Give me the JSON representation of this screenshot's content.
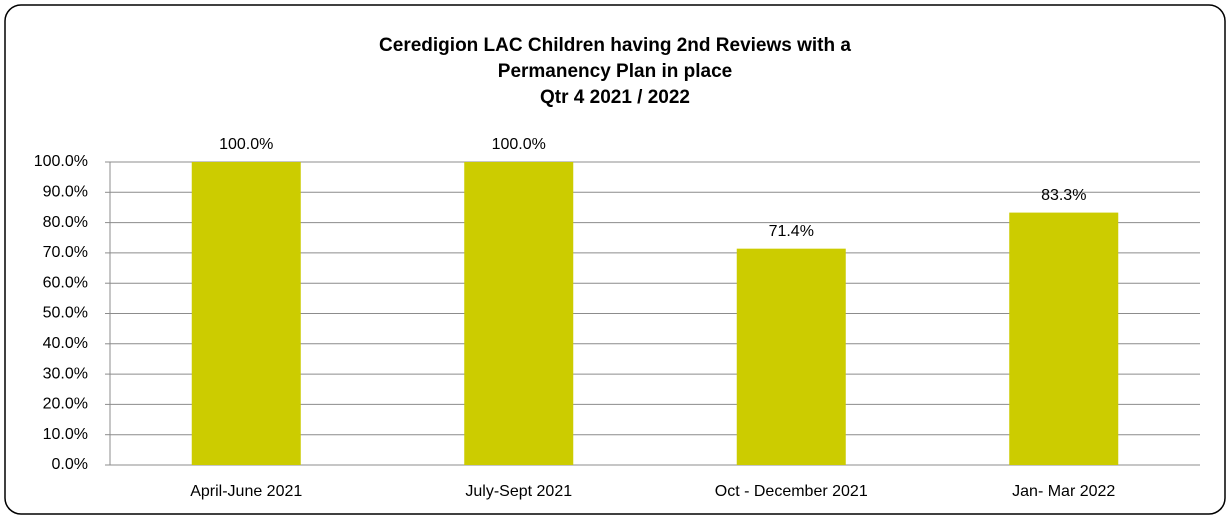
{
  "chart_data": {
    "type": "bar",
    "title": [
      "Ceredigion LAC Children having 2nd Reviews with a",
      "Permanency Plan in place",
      "Qtr 4 2021 / 2022"
    ],
    "categories": [
      "April-June 2021",
      "July-Sept 2021",
      "Oct - December 2021",
      "Jan- Mar 2022"
    ],
    "values": [
      100,
      100,
      71.4,
      83.3
    ],
    "value_labels": [
      "100.0%",
      "100.0%",
      "71.4%",
      "83.3%"
    ],
    "color": "#cccc00",
    "ylim": [
      0,
      100
    ],
    "yticks": [
      {
        "value": 0,
        "label": "0.0%"
      },
      {
        "value": 10,
        "label": "10.0%"
      },
      {
        "value": 20,
        "label": "20.0%"
      },
      {
        "value": 30,
        "label": "30.0%"
      },
      {
        "value": 40,
        "label": "40.0%"
      },
      {
        "value": 50,
        "label": "50.0%"
      },
      {
        "value": 60,
        "label": "60.0%"
      },
      {
        "value": 70,
        "label": "70.0%"
      },
      {
        "value": 80,
        "label": "80.0%"
      },
      {
        "value": 90,
        "label": "90.0%"
      },
      {
        "value": 100,
        "label": "100.0%"
      }
    ],
    "grid": true
  }
}
